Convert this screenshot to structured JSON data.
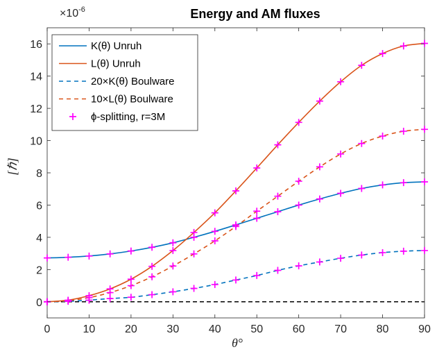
{
  "chart_data": {
    "type": "line",
    "title": "Energy and AM fluxes",
    "xlabel": "θ°",
    "ylabel": "[ℏ]",
    "y_exponent_label": "×10",
    "y_exponent_power": "-6",
    "xlim": [
      0,
      90
    ],
    "ylim": [
      -1,
      17
    ],
    "y_scale_factor": 1e-06,
    "xticks": [
      0,
      10,
      20,
      30,
      40,
      50,
      60,
      70,
      80,
      90
    ],
    "yticks": [
      0,
      2,
      4,
      6,
      8,
      10,
      12,
      14,
      16
    ],
    "grid": false,
    "legend_position": "top-left",
    "series": [
      {
        "name": "K(θ) Unruh",
        "style": "solid",
        "color": "#0072BD",
        "x": [
          0,
          5,
          10,
          15,
          20,
          25,
          30,
          35,
          40,
          45,
          50,
          55,
          60,
          65,
          70,
          75,
          80,
          85,
          90
        ],
        "y": [
          2.72,
          2.76,
          2.84,
          2.97,
          3.15,
          3.38,
          3.66,
          4.0,
          4.37,
          4.77,
          5.18,
          5.59,
          6.0,
          6.38,
          6.73,
          7.03,
          7.25,
          7.39,
          7.44
        ]
      },
      {
        "name": "L(θ) Unruh",
        "style": "solid",
        "color": "#D95319",
        "x": [
          0,
          5,
          10,
          15,
          20,
          25,
          30,
          35,
          40,
          45,
          50,
          55,
          60,
          65,
          70,
          75,
          80,
          85,
          90
        ],
        "y": [
          0,
          0.1,
          0.38,
          0.8,
          1.4,
          2.2,
          3.18,
          4.3,
          5.52,
          6.88,
          8.3,
          9.74,
          11.13,
          12.45,
          13.65,
          14.67,
          15.4,
          15.87,
          16.03
        ]
      },
      {
        "name": "20×K(θ) Boulware",
        "style": "dashed",
        "color": "#0072BD",
        "x": [
          0,
          5,
          10,
          15,
          20,
          25,
          30,
          35,
          40,
          45,
          50,
          55,
          60,
          65,
          70,
          75,
          80,
          85,
          90
        ],
        "y": [
          0,
          0.03,
          0.1,
          0.2,
          0.28,
          0.44,
          0.62,
          0.83,
          1.07,
          1.35,
          1.63,
          1.95,
          2.23,
          2.47,
          2.7,
          2.9,
          3.05,
          3.14,
          3.18
        ]
      },
      {
        "name": "10×L(θ) Boulware",
        "style": "dashed",
        "color": "#D95319",
        "x": [
          0,
          5,
          10,
          15,
          20,
          25,
          30,
          35,
          40,
          45,
          50,
          55,
          60,
          65,
          70,
          75,
          80,
          85,
          90
        ],
        "y": [
          0,
          0.07,
          0.26,
          0.57,
          1.0,
          1.55,
          2.22,
          2.97,
          3.78,
          4.67,
          5.62,
          6.55,
          7.48,
          8.37,
          9.17,
          9.82,
          10.28,
          10.58,
          10.7
        ]
      },
      {
        "name": "ϕ-splitting, r=3M",
        "style": "markers",
        "marker": "+",
        "color": "#FF00FF",
        "on_series": [
          "K(θ) Unruh",
          "L(θ) Unruh",
          "20×K(θ) Boulware",
          "10×L(θ) Boulware"
        ]
      }
    ],
    "reference_line": {
      "y": 0,
      "style": "dashed",
      "color": "#000000"
    }
  }
}
